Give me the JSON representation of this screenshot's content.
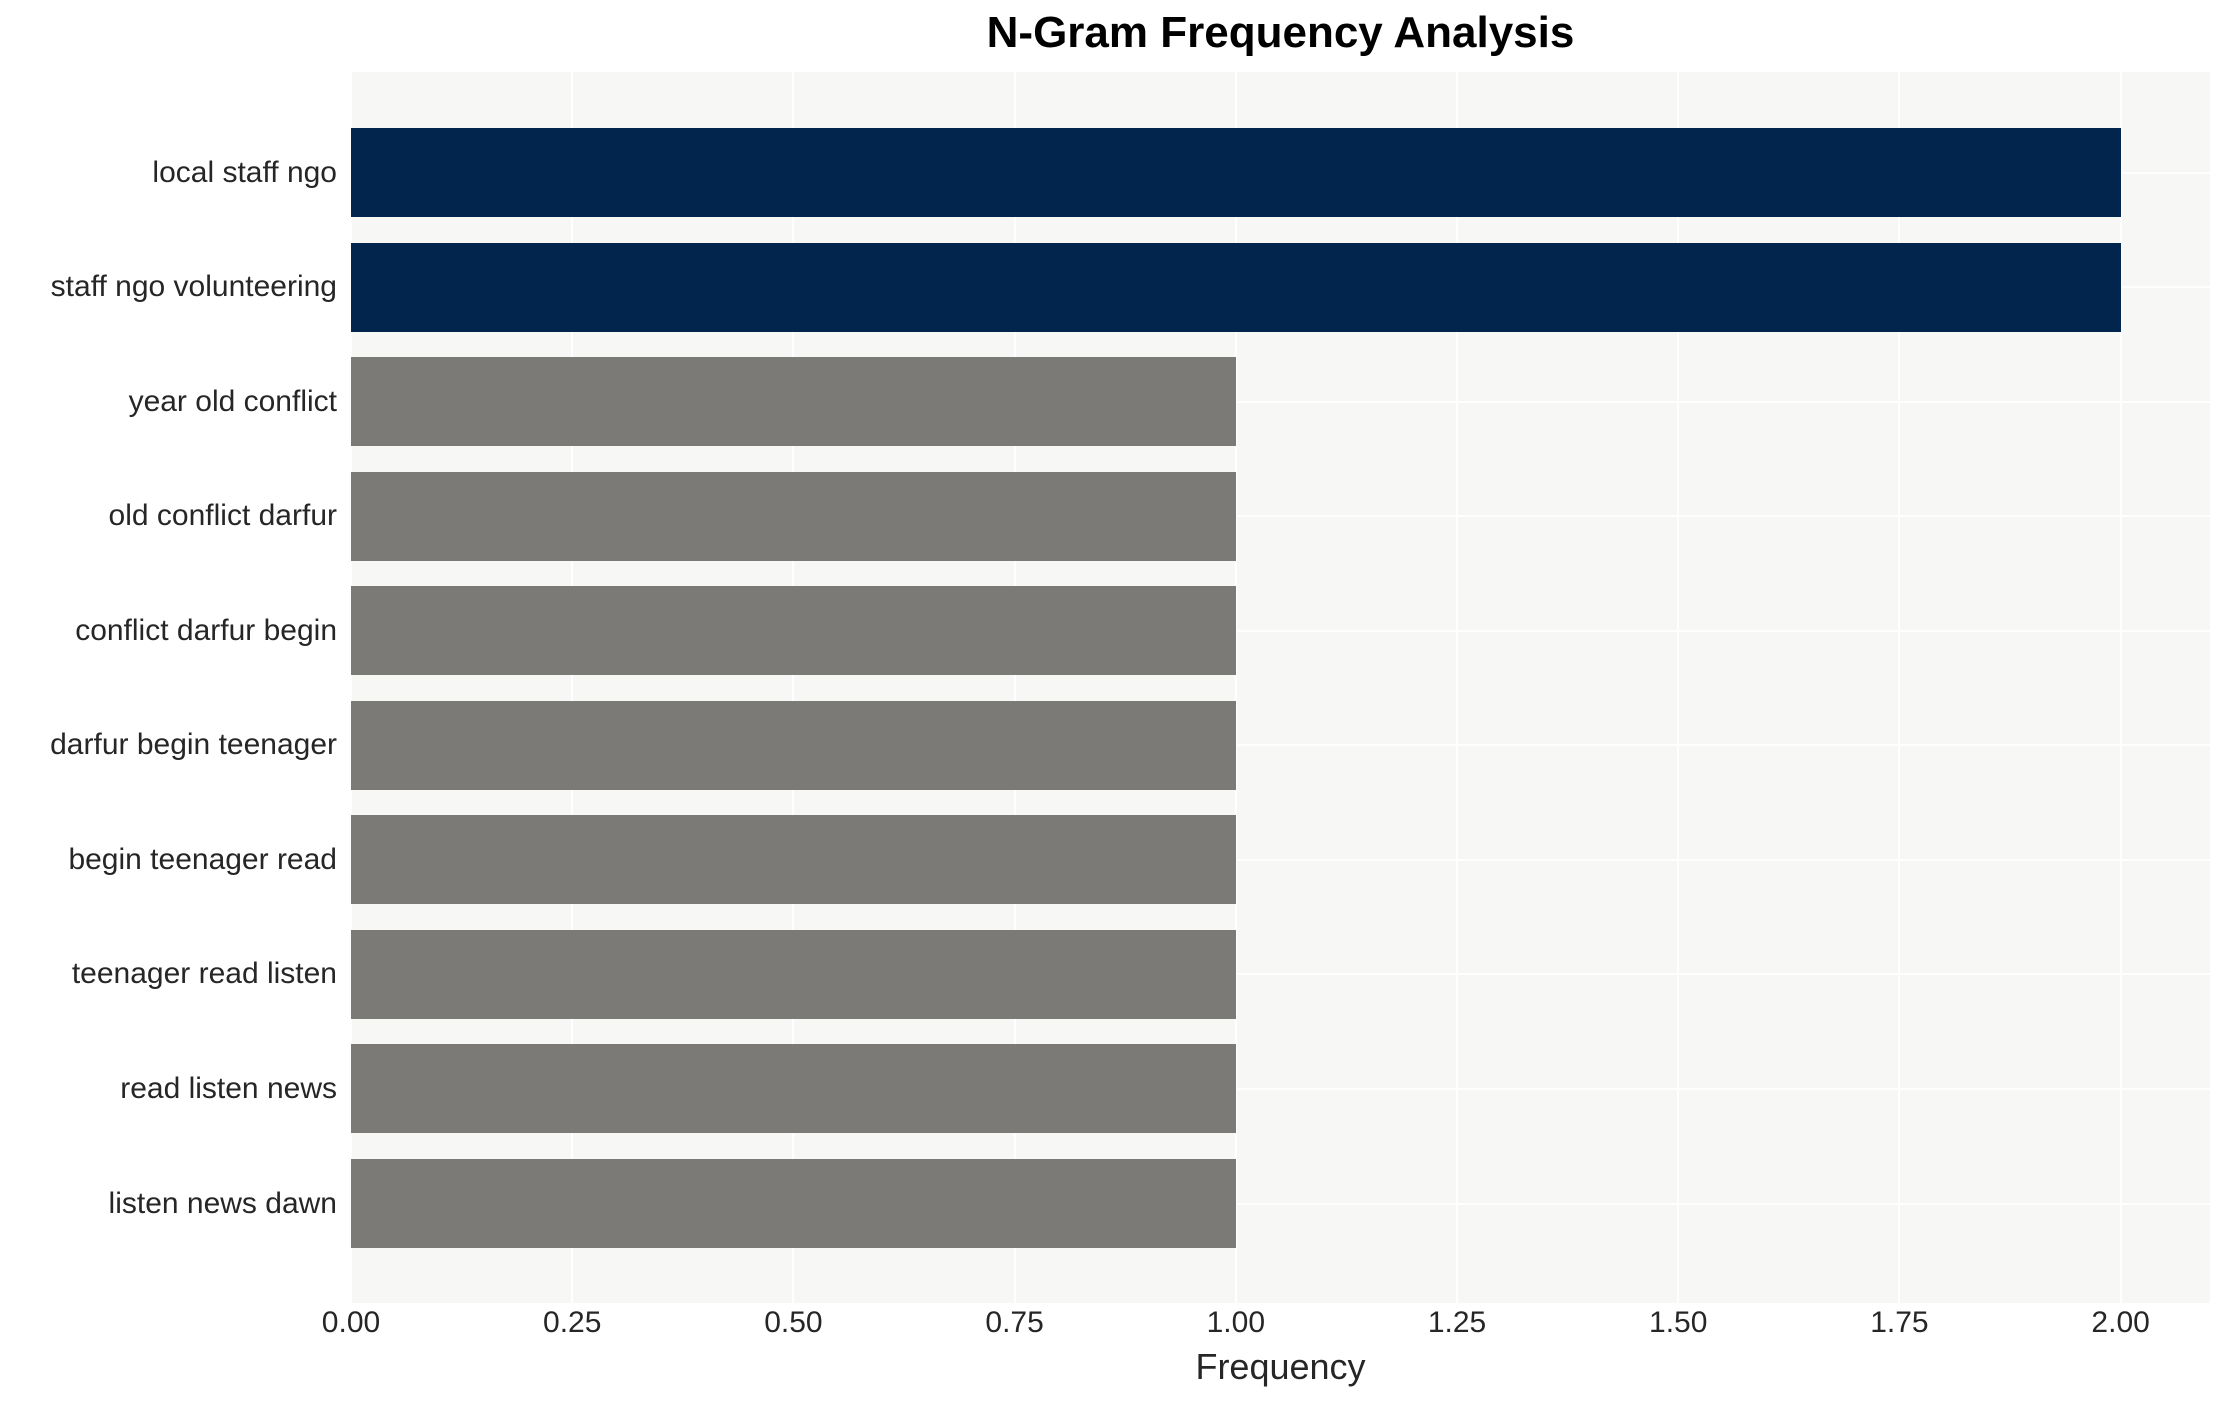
{
  "chart_data": {
    "type": "bar",
    "orientation": "horizontal",
    "title": "N-Gram Frequency Analysis",
    "xlabel": "Frequency",
    "ylabel": "",
    "categories": [
      "local staff ngo",
      "staff ngo volunteering",
      "year old conflict",
      "old conflict darfur",
      "conflict darfur begin",
      "darfur begin teenager",
      "begin teenager read",
      "teenager read listen",
      "read listen news",
      "listen news dawn"
    ],
    "values": [
      2.0,
      2.0,
      1.0,
      1.0,
      1.0,
      1.0,
      1.0,
      1.0,
      1.0,
      1.0
    ],
    "bar_colors": [
      "#02254e",
      "#02254e",
      "#7b7a77",
      "#7b7a77",
      "#7b7a77",
      "#7b7a77",
      "#7b7a77",
      "#7b7a77",
      "#7b7a77",
      "#7b7a77"
    ],
    "x_ticks": [
      "0.00",
      "0.25",
      "0.50",
      "0.75",
      "1.00",
      "1.25",
      "1.50",
      "1.75",
      "2.00"
    ],
    "x_tick_values": [
      0,
      0.25,
      0.5,
      0.75,
      1.0,
      1.25,
      1.5,
      1.75,
      2.0
    ],
    "xlim": [
      0,
      2.101
    ],
    "grid": true,
    "legend": false,
    "colors": {
      "highlight_bar": "#02254e",
      "default_bar": "#7b7a77",
      "plot_background": "#f7f7f5",
      "gridline": "#ffffff",
      "text": "#262626",
      "title_text": "#000000"
    }
  }
}
